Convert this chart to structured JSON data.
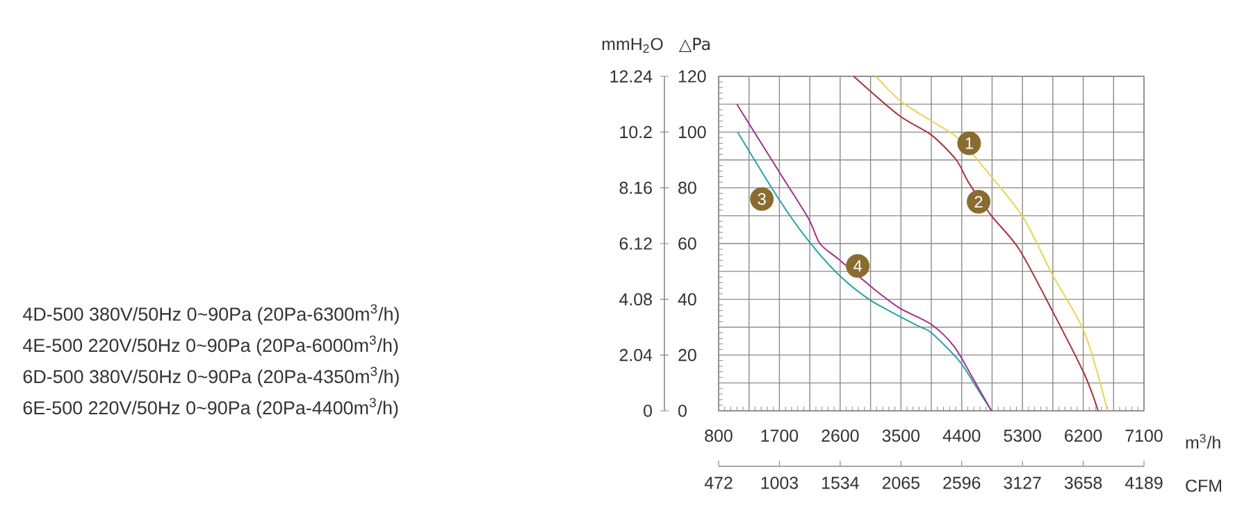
{
  "chart_data": {
    "type": "line",
    "xlabel": "m$^{3}$/h",
    "ylabel": "△Pa",
    "y2label": "mmH$_{2}$O",
    "x2label": "CFM",
    "xlim": [
      800,
      7100
    ],
    "xticks": [
      800,
      {
        "value": 1250,
        "label": null
      },
      1700,
      {
        "value": 2150,
        "label": null
      },
      2600,
      {
        "value": 3050,
        "label": null
      },
      3500,
      {
        "value": 3950,
        "label": null
      },
      4400,
      {
        "value": 4850,
        "label": null
      },
      5300,
      {
        "value": 5750,
        "label": null
      },
      6200,
      {
        "value": 6650,
        "label": null
      },
      7100
    ],
    "ylim": [
      0,
      120
    ],
    "yticks": [
      0,
      {
        "value": 10,
        "label": null
      },
      20,
      {
        "value": 30,
        "label": null
      },
      40,
      {
        "value": 50,
        "label": null
      },
      60,
      {
        "value": 70,
        "label": null
      },
      80,
      {
        "value": 90,
        "label": null
      },
      100,
      {
        "value": 110,
        "label": null
      },
      120
    ],
    "y2lim": [
      0,
      12.24
    ],
    "y2ticks": [
      0,
      2.04,
      4.08,
      6.12,
      8.16,
      10.2,
      12.24
    ],
    "x2lim": [
      472,
      4189
    ],
    "x2ticks": [
      472,
      1003,
      1534,
      2065,
      2596,
      3127,
      3658,
      4189
    ],
    "grid": true,
    "series": [
      {
        "color": "#e8d452",
        "x": [
          3130,
          3500,
          3950,
          4360,
          4840,
          5320,
          5740,
          6220,
          6560
        ],
        "values": [
          120,
          111,
          104,
          97.5,
          84,
          69,
          49,
          28,
          0
        ]
      },
      {
        "color": "#a8323c",
        "x": [
          2800,
          3470,
          3950,
          4320,
          4500,
          4840,
          5250,
          5740,
          6220,
          6420
        ],
        "values": [
          120,
          106,
          99,
          90,
          82,
          70,
          58,
          36,
          13,
          0
        ]
      },
      {
        "color": "#2aa0a8",
        "x": [
          1080,
          1690,
          2130,
          2570,
          3060,
          3750,
          3950,
          4360,
          4630,
          4840
        ],
        "values": [
          100,
          76,
          61,
          49,
          39.5,
          30.5,
          28,
          18,
          8,
          0
        ]
      },
      {
        "color": "#a0308a",
        "x": [
          1070,
          1690,
          2130,
          2300,
          2570,
          3060,
          3470,
          3950,
          4290,
          4570,
          4840
        ],
        "values": [
          110,
          86,
          69,
          60,
          54.5,
          44.5,
          37,
          31,
          23,
          11.5,
          0
        ]
      }
    ],
    "annotations": [
      {
        "text": "1",
        "x": 4510,
        "y": 96
      },
      {
        "text": "2",
        "x": 4650,
        "y": 75
      },
      {
        "text": "3",
        "x": 1440,
        "y": 76
      },
      {
        "text": "4",
        "x": 2860,
        "y": 52
      },
      "4D-500  380V/50Hz  0~90Pa   (20Pa-6300m$^{3}$/h)",
      "4E-500  220V/50Hz  0~90Pa   (20Pa-6000m$^{3}$/h)",
      "6D-500  380V/50Hz  0~90Pa   (20Pa-4350m$^{3}$/h)",
      "6E-500  220V/50Hz  0~90Pa   (20Pa-4400m$^{3}$/h)"
    ]
  }
}
